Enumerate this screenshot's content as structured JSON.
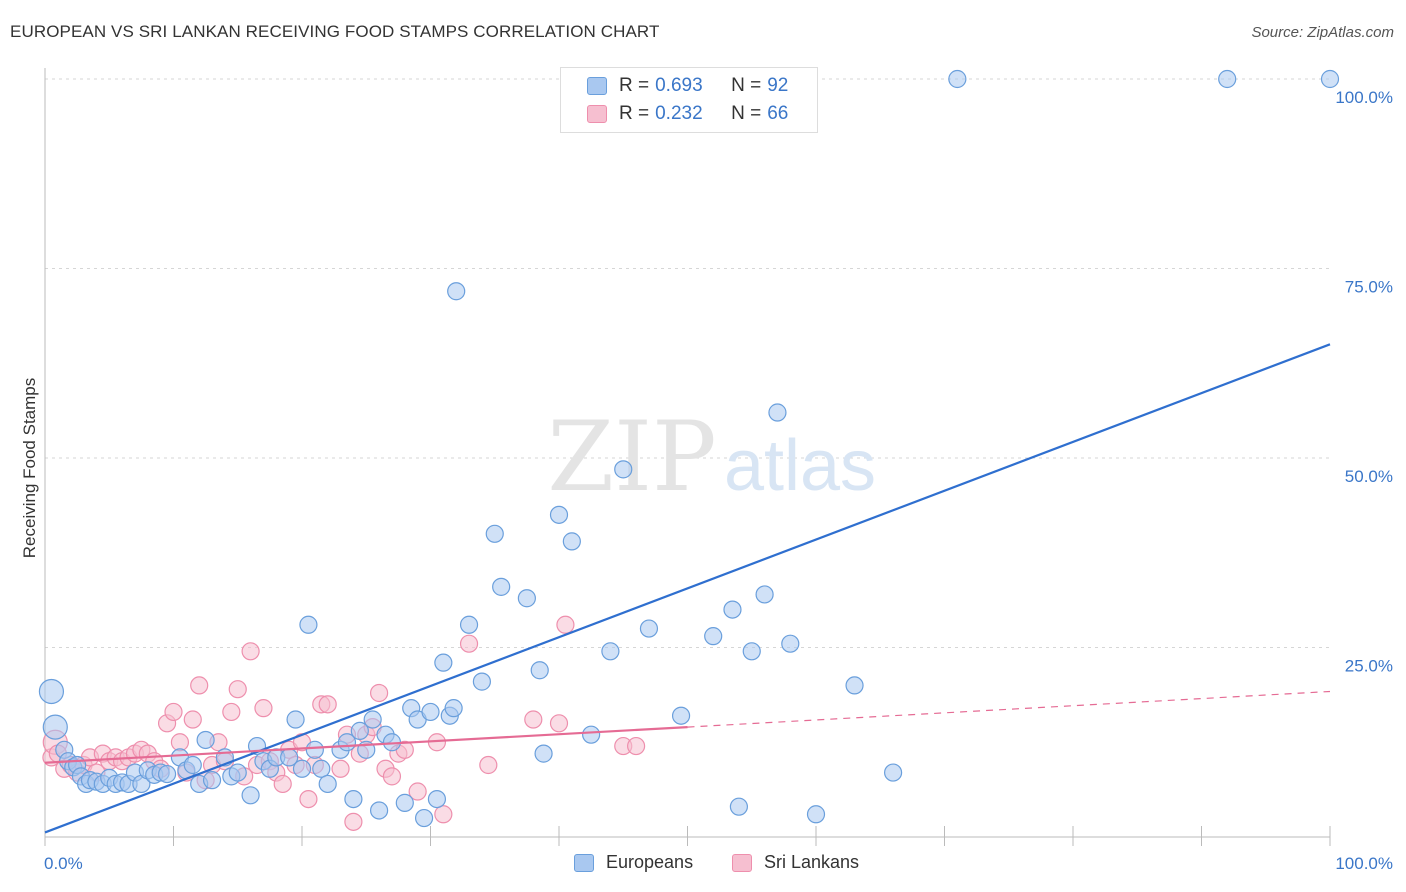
{
  "title": "EUROPEAN VS SRI LANKAN RECEIVING FOOD STAMPS CORRELATION CHART",
  "source": "Source: ZipAtlas.com",
  "watermark": {
    "zip": "ZIP",
    "atlas": "atlas"
  },
  "colors": {
    "europeans_fill": "#a9c8f0",
    "europeans_stroke": "#6a9fdc",
    "europeans_line": "#2f6fcf",
    "srilankans_fill": "#f6bfd0",
    "srilankans_stroke": "#ee8fad",
    "srilankans_line": "#e56b94",
    "axis_text": "#3a76c8",
    "grid": "#d6d6d6"
  },
  "legend": {
    "rows": [
      {
        "r_label": "R = ",
        "r_value": "0.693",
        "n_label": "N = ",
        "n_value": "92"
      },
      {
        "r_label": "R = ",
        "r_value": "0.232",
        "n_label": "N = ",
        "n_value": "66"
      }
    ]
  },
  "bottom_legend": {
    "europeans": "Europeans",
    "srilankans": "Sri Lankans"
  },
  "chart_data": {
    "type": "scatter",
    "xlabel": "",
    "ylabel": "Receiving Food Stamps",
    "xlim": [
      0,
      100
    ],
    "ylim": [
      0,
      100
    ],
    "x_tick_labels": [
      "0.0%",
      "100.0%"
    ],
    "y_tick_labels": [
      {
        "value": 100,
        "label": "100.0%"
      },
      {
        "value": 75,
        "label": "75.0%"
      },
      {
        "value": 50,
        "label": "50.0%"
      },
      {
        "value": 25,
        "label": "25.0%"
      }
    ],
    "grid": true,
    "legend_position": "top-center",
    "series": [
      {
        "name": "Europeans",
        "regression": {
          "x0": 0,
          "y0": 0.6,
          "x1": 100,
          "y1": 65
        },
        "points": [
          [
            0.5,
            19.2
          ],
          [
            0.8,
            14.5
          ],
          [
            1.5,
            11.5
          ],
          [
            1.8,
            10.0
          ],
          [
            2.2,
            9.2
          ],
          [
            2.5,
            9.5
          ],
          [
            2.8,
            8.0
          ],
          [
            3.2,
            7.0
          ],
          [
            3.5,
            7.5
          ],
          [
            4.0,
            7.3
          ],
          [
            4.5,
            7.0
          ],
          [
            5.0,
            7.8
          ],
          [
            5.5,
            7.0
          ],
          [
            6.0,
            7.2
          ],
          [
            6.5,
            7.0
          ],
          [
            7.0,
            8.5
          ],
          [
            7.5,
            7.0
          ],
          [
            8.0,
            8.8
          ],
          [
            8.5,
            8.2
          ],
          [
            9.0,
            8.5
          ],
          [
            9.5,
            8.3
          ],
          [
            10.5,
            10.5
          ],
          [
            11.0,
            8.8
          ],
          [
            11.5,
            9.5
          ],
          [
            12.0,
            7.0
          ],
          [
            12.5,
            12.8
          ],
          [
            13.0,
            7.5
          ],
          [
            14.0,
            10.5
          ],
          [
            14.5,
            8.0
          ],
          [
            15.0,
            8.5
          ],
          [
            16.0,
            5.5
          ],
          [
            16.5,
            12.0
          ],
          [
            17.0,
            10.0
          ],
          [
            17.5,
            9.0
          ],
          [
            18.0,
            10.5
          ],
          [
            19.0,
            10.5
          ],
          [
            19.5,
            15.5
          ],
          [
            20.0,
            9.0
          ],
          [
            20.5,
            28.0
          ],
          [
            21.0,
            11.5
          ],
          [
            21.5,
            9.0
          ],
          [
            22.0,
            7.0
          ],
          [
            23.0,
            11.5
          ],
          [
            23.5,
            12.5
          ],
          [
            24.0,
            5.0
          ],
          [
            24.5,
            14.0
          ],
          [
            25.0,
            11.5
          ],
          [
            25.5,
            15.5
          ],
          [
            26.0,
            3.5
          ],
          [
            26.5,
            13.5
          ],
          [
            27.0,
            12.5
          ],
          [
            28.0,
            4.5
          ],
          [
            28.5,
            17.0
          ],
          [
            29.0,
            15.5
          ],
          [
            29.5,
            2.5
          ],
          [
            30.0,
            16.5
          ],
          [
            30.5,
            5.0
          ],
          [
            31.0,
            23.0
          ],
          [
            31.5,
            16.0
          ],
          [
            31.8,
            17.0
          ],
          [
            32.0,
            72.0
          ],
          [
            33.0,
            28.0
          ],
          [
            34.0,
            20.5
          ],
          [
            35.0,
            40.0
          ],
          [
            35.5,
            33.0
          ],
          [
            37.5,
            31.5
          ],
          [
            38.5,
            22.0
          ],
          [
            38.8,
            11.0
          ],
          [
            40.0,
            42.5
          ],
          [
            41.0,
            39.0
          ],
          [
            42.5,
            13.5
          ],
          [
            44.0,
            24.5
          ],
          [
            45.0,
            48.5
          ],
          [
            47.0,
            27.5
          ],
          [
            49.5,
            16.0
          ],
          [
            52.0,
            26.5
          ],
          [
            53.5,
            30.0
          ],
          [
            54.0,
            4.0
          ],
          [
            55.0,
            24.5
          ],
          [
            56.0,
            32.0
          ],
          [
            57.0,
            56.0
          ],
          [
            58.0,
            25.5
          ],
          [
            60.0,
            3.0
          ],
          [
            63.0,
            20.0
          ],
          [
            66.0,
            8.5
          ],
          [
            71.0,
            100.0
          ],
          [
            92.0,
            100.0
          ],
          [
            100.0,
            100.0
          ]
        ]
      },
      {
        "name": "Sri Lankans",
        "regression": {
          "x0": 0,
          "y0": 9.8,
          "x1": 50,
          "y1": 14.5,
          "dash_x1": 100,
          "dash_y1": 19.2
        },
        "points": [
          [
            0.5,
            10.5
          ],
          [
            0.8,
            12.5
          ],
          [
            1.0,
            11.0
          ],
          [
            1.5,
            9.0
          ],
          [
            2.0,
            9.5
          ],
          [
            2.5,
            8.5
          ],
          [
            3.0,
            9.5
          ],
          [
            3.5,
            10.5
          ],
          [
            4.0,
            8.5
          ],
          [
            4.5,
            11.0
          ],
          [
            5.0,
            10.0
          ],
          [
            5.5,
            10.5
          ],
          [
            6.0,
            10.0
          ],
          [
            6.5,
            10.5
          ],
          [
            7.0,
            11.0
          ],
          [
            7.5,
            11.5
          ],
          [
            8.0,
            11.0
          ],
          [
            8.5,
            10.0
          ],
          [
            9.0,
            9.0
          ],
          [
            9.5,
            15.0
          ],
          [
            10.0,
            16.5
          ],
          [
            10.5,
            12.5
          ],
          [
            11.0,
            8.5
          ],
          [
            11.5,
            15.5
          ],
          [
            12.0,
            20.0
          ],
          [
            12.5,
            7.5
          ],
          [
            13.0,
            9.5
          ],
          [
            13.5,
            12.5
          ],
          [
            14.0,
            10.0
          ],
          [
            14.5,
            16.5
          ],
          [
            15.0,
            19.5
          ],
          [
            15.5,
            8.0
          ],
          [
            16.0,
            24.5
          ],
          [
            16.5,
            9.5
          ],
          [
            17.0,
            17.0
          ],
          [
            17.5,
            10.0
          ],
          [
            18.0,
            8.5
          ],
          [
            18.5,
            7.0
          ],
          [
            19.0,
            11.5
          ],
          [
            19.5,
            9.5
          ],
          [
            20.0,
            12.5
          ],
          [
            20.5,
            5.0
          ],
          [
            21.0,
            9.5
          ],
          [
            21.5,
            17.5
          ],
          [
            22.0,
            17.5
          ],
          [
            23.0,
            9.0
          ],
          [
            23.5,
            13.5
          ],
          [
            24.0,
            2.0
          ],
          [
            24.5,
            11.0
          ],
          [
            25.0,
            13.5
          ],
          [
            25.5,
            14.5
          ],
          [
            26.0,
            19.0
          ],
          [
            26.5,
            9.0
          ],
          [
            27.0,
            8.0
          ],
          [
            27.5,
            11.0
          ],
          [
            28.0,
            11.5
          ],
          [
            29.0,
            6.0
          ],
          [
            30.5,
            12.5
          ],
          [
            31.0,
            3.0
          ],
          [
            33.0,
            25.5
          ],
          [
            34.5,
            9.5
          ],
          [
            38.0,
            15.5
          ],
          [
            40.0,
            15.0
          ],
          [
            40.5,
            28.0
          ],
          [
            45.0,
            12.0
          ],
          [
            46.0,
            12.0
          ]
        ]
      }
    ]
  }
}
